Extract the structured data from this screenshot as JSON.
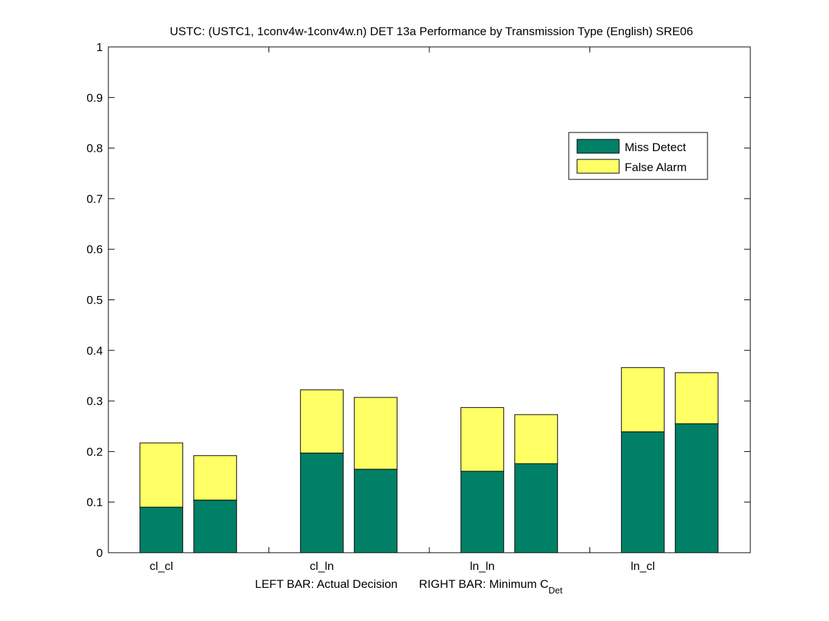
{
  "chart_data": {
    "type": "bar",
    "stacked": true,
    "title": "USTC: (USTC1, 1conv4w-1conv4w.n) DET 13a Performance by Transmission Type (English) SRE06",
    "categories": [
      "cl_cl",
      "cl_ln",
      "ln_ln",
      "ln_cl"
    ],
    "xlabel_left": "LEFT BAR: Actual Decision",
    "xlabel_right": "RIGHT BAR: Minimum C",
    "xlabel_right_sub": "Det",
    "ylim": [
      0,
      1
    ],
    "yticks": [
      "0",
      "0.1",
      "0.2",
      "0.3",
      "0.4",
      "0.5",
      "0.6",
      "0.7",
      "0.8",
      "0.9",
      "1"
    ],
    "grid": false,
    "legend_position": "upper-right",
    "series": [
      {
        "name": "Miss Detect",
        "color": "#008066",
        "actual": [
          0.09,
          0.197,
          0.161,
          0.239
        ],
        "minimum": [
          0.104,
          0.165,
          0.176,
          0.255
        ]
      },
      {
        "name": "False Alarm",
        "color": "#ffff66",
        "actual": [
          0.127,
          0.125,
          0.126,
          0.127
        ],
        "minimum": [
          0.088,
          0.142,
          0.097,
          0.101
        ]
      }
    ]
  }
}
